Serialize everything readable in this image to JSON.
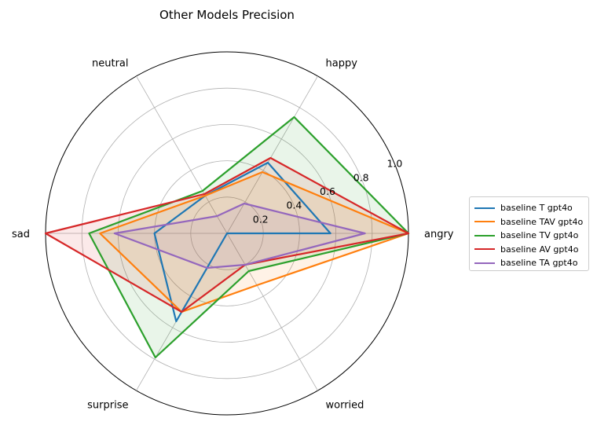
{
  "chart_data": {
    "type": "radar",
    "title": "Other Models Precision",
    "categories": [
      "angry",
      "happy",
      "neutral",
      "sad",
      "surprise",
      "worried"
    ],
    "rticks": [
      "0.2",
      "0.4",
      "0.6",
      "0.8",
      "1.0"
    ],
    "rlim": [
      0,
      1.0
    ],
    "legend_position": "right",
    "series": [
      {
        "name": "baseline T gpt4o",
        "color": "#1f77b4",
        "fill": false,
        "values": [
          0.57,
          0.45,
          0.24,
          0.4,
          0.56,
          0.0
        ]
      },
      {
        "name": "baseline TAV gpt4o",
        "color": "#ff7f0e",
        "fill": true,
        "values": [
          1.0,
          0.39,
          0.24,
          0.7,
          0.5,
          0.33
        ]
      },
      {
        "name": "baseline TV gpt4o",
        "color": "#2ca02c",
        "fill": true,
        "values": [
          1.0,
          0.74,
          0.27,
          0.76,
          0.79,
          0.24
        ]
      },
      {
        "name": "baseline AV gpt4o",
        "color": "#d62728",
        "fill": true,
        "values": [
          1.0,
          0.48,
          0.25,
          1.0,
          0.5,
          0.2
        ]
      },
      {
        "name": "baseline TA gpt4o",
        "color": "#9467bd",
        "fill": true,
        "values": [
          0.76,
          0.19,
          0.11,
          0.62,
          0.22,
          0.2
        ]
      }
    ]
  }
}
